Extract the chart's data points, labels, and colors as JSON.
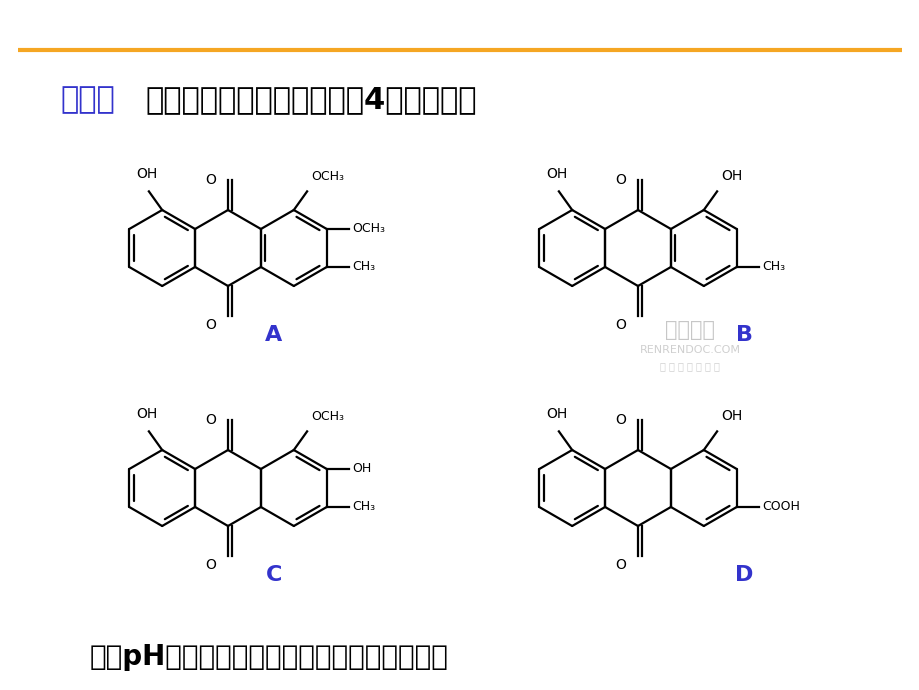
{
  "slide_bg": "#ffffff",
  "title_line_color": "#f5a623",
  "title_prefix": "例如：",
  "title_prefix_color": "#3333cc",
  "title_text": "萱草提取物中主要含有下面4种化合物。",
  "title_color": "#000000",
  "bottom_text": "采用pH梯度萃取法对其进行分离的流程如下：",
  "label_color": "#3333cc",
  "struct_color": "#000000",
  "line_width": 1.6,
  "font_size_title": 22,
  "font_size_label": 16,
  "font_size_sub": 9,
  "font_size_bottom": 20,
  "watermark1": "人人文库",
  "watermark2": "RENRENDOC.COM",
  "watermark3": "下 载 高 清 无 水 印"
}
